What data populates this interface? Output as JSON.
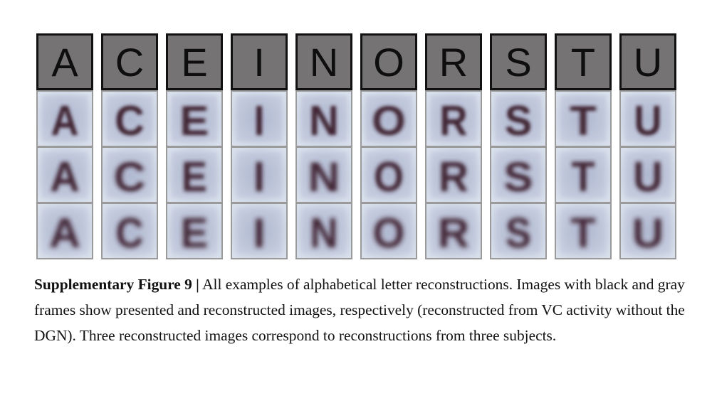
{
  "figure": {
    "letters": [
      "A",
      "C",
      "E",
      "I",
      "N",
      "O",
      "R",
      "S",
      "T",
      "U"
    ],
    "reconstruction_rows": 3,
    "colors": {
      "presented_bg": "#757374",
      "presented_frame": "#111111",
      "recon_frame": "#9a9a9a",
      "recon_bg": "#c8d2e2",
      "recon_ink": "#3a1f2c"
    }
  },
  "caption": {
    "label": "Supplementary Figure 9 |",
    "text": " All examples of alphabetical letter reconstructions. Images with black and gray frames show presented and reconstructed images, respectively (reconstructed from VC activity without the DGN). Three reconstructed images correspond to reconstructions from three subjects."
  }
}
